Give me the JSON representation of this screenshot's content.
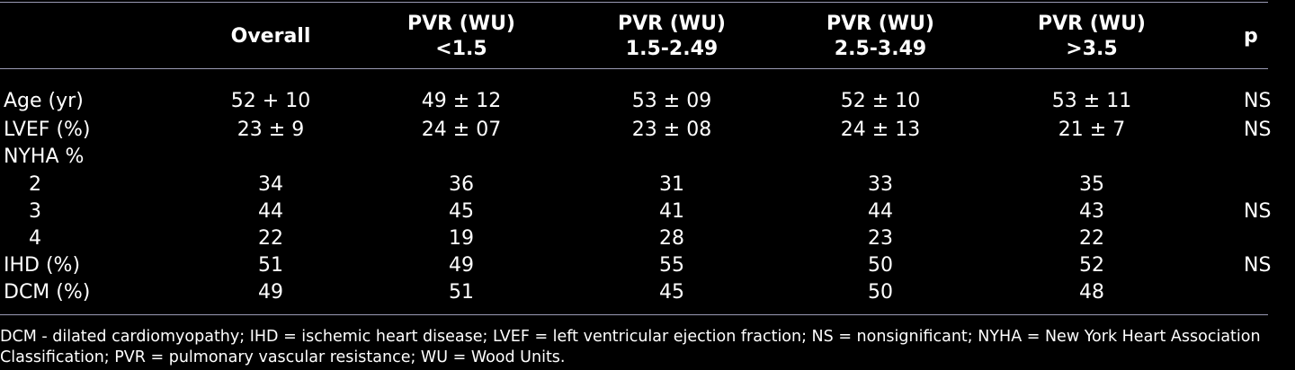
{
  "table": {
    "headers": {
      "overall": [
        "Overall"
      ],
      "g1": [
        "PVR (WU)",
        "<1.5"
      ],
      "g2": [
        "PVR (WU)",
        "1.5-2.49"
      ],
      "g3": [
        "PVR (WU)",
        "2.5-3.49"
      ],
      "g4": [
        "PVR (WU)",
        ">3.5"
      ],
      "p": [
        "p"
      ]
    },
    "rows": [
      {
        "label": "Age (yr)",
        "overall": "52 + 10",
        "g1": "49 ± 12",
        "g2": "53 ± 09",
        "g3": "52 ± 10",
        "g4": "53 ± 11",
        "p": "NS"
      },
      {
        "label": "LVEF (%)",
        "overall": "23 ± 9",
        "g1": "24 ± 07",
        "g2": "23 ± 08",
        "g3": "24 ± 13",
        "g4": "21 ± 7",
        "p": "NS"
      },
      {
        "label": "NYHA %",
        "overall": "",
        "g1": "",
        "g2": "",
        "g3": "",
        "g4": "",
        "p": ""
      },
      {
        "label": "2",
        "overall": "34",
        "g1": "36",
        "g2": "31",
        "g3": "33",
        "g4": "35",
        "p": ""
      },
      {
        "label": "3",
        "overall": "44",
        "g1": "45",
        "g2": "41",
        "g3": "44",
        "g4": "43",
        "p": "NS"
      },
      {
        "label": "4",
        "overall": "22",
        "g1": "19",
        "g2": "28",
        "g3": "23",
        "g4": "22",
        "p": ""
      },
      {
        "label": "IHD (%)",
        "overall": "51",
        "g1": "49",
        "g2": "55",
        "g3": "50",
        "g4": "52",
        "p": "NS"
      },
      {
        "label": "DCM (%)",
        "overall": "49",
        "g1": "51",
        "g2": "45",
        "g3": "50",
        "g4": "48",
        "p": ""
      }
    ]
  },
  "footnote": [
    "DCM - dilated cardiomyopathy; IHD = ischemic heart disease; LVEF = left ventricular ejection fraction; NS = nonsignificant; NYHA = New York Heart Association",
    "Classification; PVR = pulmonary vascular resistance; WU = Wood Units."
  ]
}
